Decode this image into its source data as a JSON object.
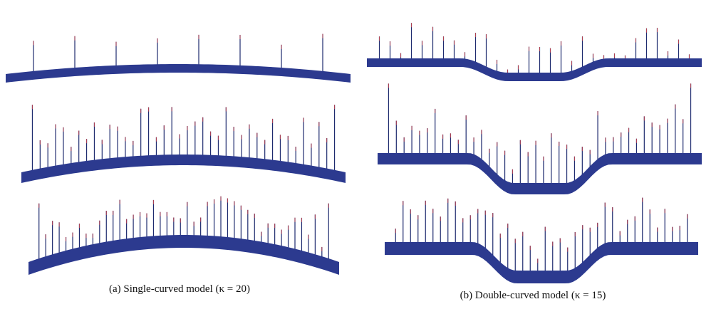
{
  "captions": {
    "a": "(a) Single-curved model (κ = 20)",
    "b": "(b) Double-curved model (κ = 15)"
  }
}
